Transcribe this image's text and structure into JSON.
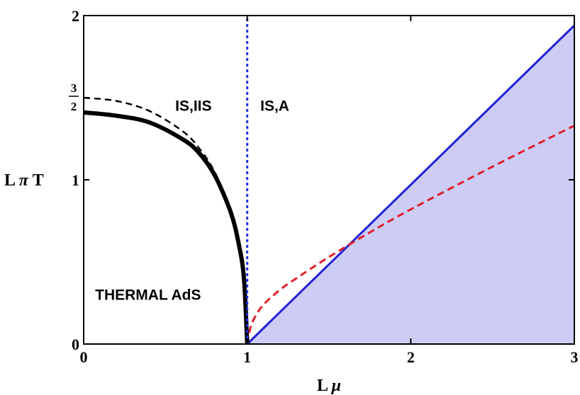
{
  "chart_data": {
    "type": "line",
    "title": "",
    "xlabel": "L μ",
    "ylabel": "L π T",
    "xlim": [
      0,
      3
    ],
    "ylim": [
      0,
      2
    ],
    "x_ticks": [
      "0",
      "1",
      "2",
      "3"
    ],
    "y_ticks": [
      "0",
      "1",
      "2"
    ],
    "y_fraction_tick": {
      "value": 1.5,
      "numerator": "3",
      "denominator": "2"
    },
    "grid": false,
    "region_labels": [
      "IS,IIS",
      "IS,A",
      "THERMAL AdS"
    ],
    "colors": {
      "solid_black": "#000000",
      "dashed_black": "#000000",
      "vertical_dotted": "#1f2fe0",
      "blue_line": "#1f1fd8",
      "red_dashed": "#e0202a",
      "shade": "#ccccf4"
    },
    "series": [
      {
        "style": "solid-black-thick",
        "x": [
          0.0,
          0.2,
          0.4,
          0.6,
          0.7,
          0.8,
          0.9,
          0.95,
          0.98,
          1.0
        ],
        "y": [
          1.41,
          1.39,
          1.35,
          1.25,
          1.17,
          1.03,
          0.8,
          0.6,
          0.4,
          0.0
        ]
      },
      {
        "style": "dashed-black",
        "x": [
          0.0,
          0.2,
          0.4,
          0.6,
          0.7,
          0.8,
          0.9,
          0.95,
          0.98,
          1.0
        ],
        "y": [
          1.5,
          1.48,
          1.42,
          1.3,
          1.2,
          1.05,
          0.81,
          0.62,
          0.42,
          0.0
        ]
      },
      {
        "style": "dotted-blue-vertical",
        "x": [
          1.0,
          1.0
        ],
        "y": [
          0.0,
          2.0
        ]
      },
      {
        "style": "solid-blue",
        "x": [
          1.0,
          3.0
        ],
        "y": [
          0.0,
          1.94
        ]
      },
      {
        "style": "dashed-red",
        "x": [
          1.0,
          1.02,
          1.05,
          1.1,
          1.2,
          1.3,
          1.5,
          1.75,
          2.0,
          2.5,
          3.0
        ],
        "y": [
          0.0,
          0.1,
          0.17,
          0.24,
          0.33,
          0.4,
          0.53,
          0.68,
          0.82,
          1.08,
          1.33
        ]
      }
    ],
    "shaded_region": {
      "description": "below solid blue line",
      "x": [
        1.0,
        3.0
      ],
      "y_upper": [
        0.0,
        1.94
      ]
    }
  }
}
